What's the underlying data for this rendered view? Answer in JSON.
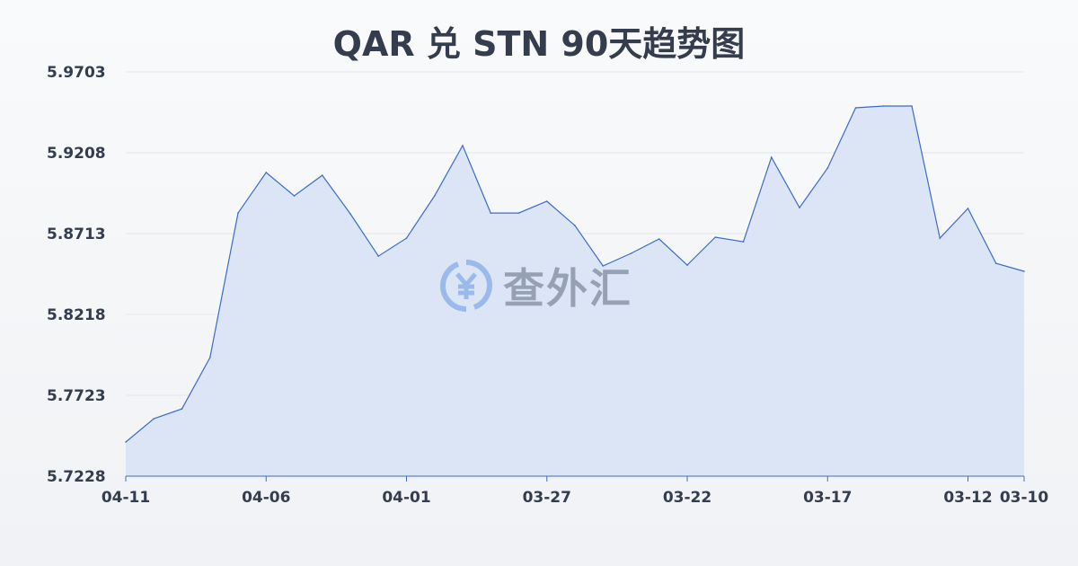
{
  "chart_data": {
    "type": "area",
    "title": "QAR 兑 STN 90天趋势图",
    "xlabel": "",
    "ylabel": "",
    "ylim": [
      5.7228,
      5.9703
    ],
    "yticks": [
      "5.9703",
      "5.9208",
      "5.8713",
      "5.8218",
      "5.7723",
      "5.7228"
    ],
    "xticks": [
      "04-11",
      "04-06",
      "04-01",
      "03-27",
      "03-22",
      "03-17",
      "03-12",
      "03-10"
    ],
    "grid": true,
    "line_color": "#3b6cc9",
    "fill_color": "#d7e2f6",
    "x": [
      "04-11",
      "04-10",
      "04-09",
      "04-08",
      "04-07",
      "04-06",
      "04-05",
      "04-04",
      "04-03",
      "04-02",
      "04-01",
      "03-31",
      "03-30",
      "03-29",
      "03-28",
      "03-27",
      "03-26",
      "03-25",
      "03-24",
      "03-23",
      "03-22",
      "03-21",
      "03-20",
      "03-19",
      "03-18",
      "03-17",
      "03-16",
      "03-15",
      "03-14",
      "03-13",
      "03-12",
      "03-11",
      "03-10"
    ],
    "values": [
      5.7437,
      5.758,
      5.764,
      5.7954,
      5.8839,
      5.9087,
      5.8944,
      5.907,
      5.8834,
      5.8575,
      5.8685,
      5.8944,
      5.9252,
      5.8839,
      5.8839,
      5.8911,
      5.8762,
      5.8515,
      5.8592,
      5.868,
      5.852,
      5.8691,
      5.8663,
      5.918,
      5.8872,
      5.9114,
      5.9483,
      5.9494,
      5.9494,
      5.8685,
      5.8867,
      5.8531,
      5.8482
    ]
  },
  "watermark": {
    "text": "查外汇",
    "icon": "yen-exchange-icon"
  }
}
